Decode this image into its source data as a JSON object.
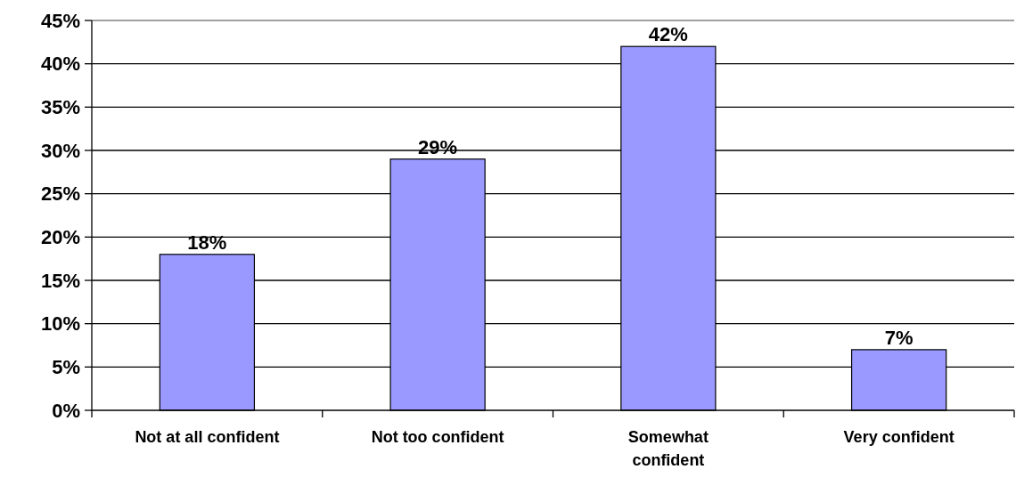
{
  "chart_data": {
    "type": "bar",
    "categories": [
      "Not at all confident",
      "Not too confident",
      "Somewhat\nconfident",
      "Very confident"
    ],
    "values": [
      18,
      29,
      42,
      7
    ],
    "color": "#9999ff",
    "ylim": [
      0,
      45
    ],
    "yticks": [
      {
        "value": 0,
        "label": "0%"
      },
      {
        "value": 5,
        "label": "5%"
      },
      {
        "value": 10,
        "label": "10%"
      },
      {
        "value": 15,
        "label": "15%"
      },
      {
        "value": 20,
        "label": "20%"
      },
      {
        "value": 25,
        "label": "25%"
      },
      {
        "value": 30,
        "label": "30%"
      },
      {
        "value": 35,
        "label": "35%"
      },
      {
        "value": 40,
        "label": "40%"
      },
      {
        "value": 45,
        "label": "45%"
      }
    ],
    "grid": "y",
    "value_labels": [
      "18%",
      "29%",
      "42%",
      "7%"
    ]
  }
}
